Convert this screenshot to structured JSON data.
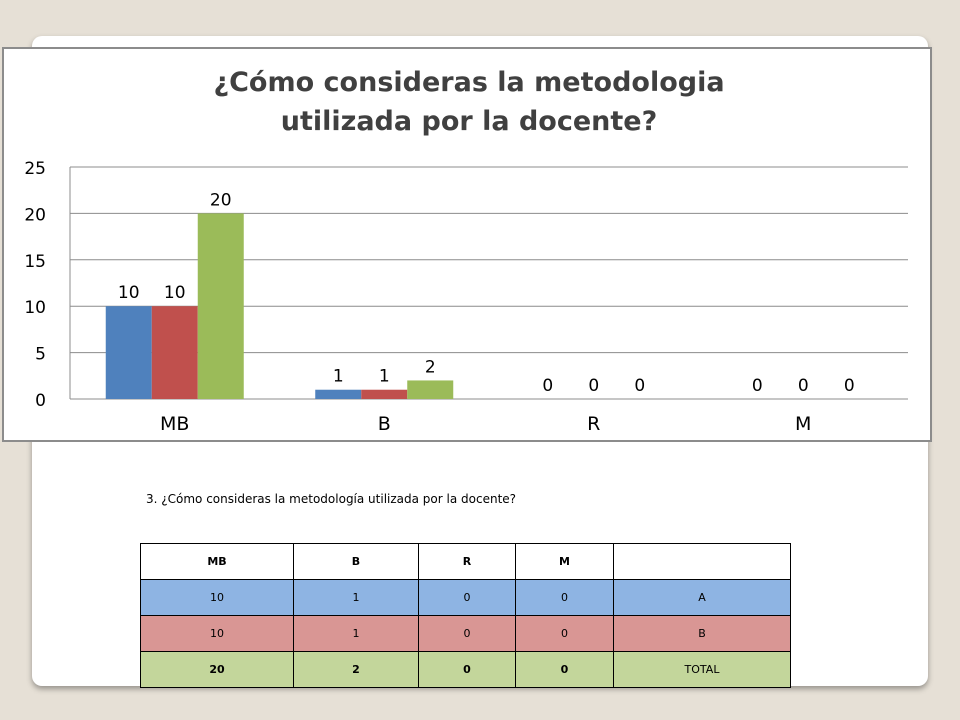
{
  "slide": {
    "question_text": "3. ¿Cómo consideras la metodología utilizada por la docente?"
  },
  "chart_data": {
    "type": "bar",
    "title_line1": "¿Cómo consideras la metodologia",
    "title_line2": "utilizada por la docente?",
    "categories": [
      "MB",
      "B",
      "R",
      "M"
    ],
    "series": [
      {
        "name": "A",
        "color": "#4f81bd",
        "values": [
          10,
          1,
          0,
          0
        ]
      },
      {
        "name": "B",
        "color": "#c0504d",
        "values": [
          10,
          1,
          0,
          0
        ]
      },
      {
        "name": "TOTAL",
        "color": "#9bbb59",
        "values": [
          20,
          2,
          0,
          0
        ]
      }
    ],
    "ylim": [
      0,
      25
    ],
    "yticks": [
      0,
      5,
      10,
      15,
      20,
      25
    ],
    "xlabel": "",
    "ylabel": "",
    "grid": true,
    "legend": "none"
  },
  "table": {
    "headers": [
      "MB",
      "B",
      "R",
      "M",
      ""
    ],
    "rows": [
      [
        "10",
        "1",
        "0",
        "0",
        "A"
      ],
      [
        "10",
        "1",
        "0",
        "0",
        "B"
      ],
      [
        "20",
        "2",
        "0",
        "0",
        "TOTAL"
      ]
    ]
  }
}
